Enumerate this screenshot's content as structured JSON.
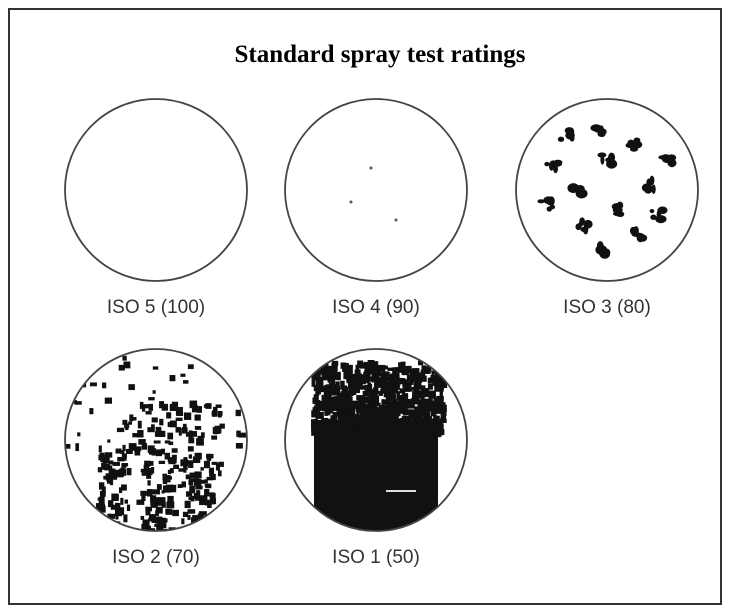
{
  "title": "Standard spray test ratings",
  "samples": [
    {
      "label": "ISO 5 (100)"
    },
    {
      "label": "ISO 4 (90)"
    },
    {
      "label": "ISO 3 (80)"
    },
    {
      "label": "ISO 2 (70)"
    },
    {
      "label": "ISO 1 (50)"
    }
  ]
}
